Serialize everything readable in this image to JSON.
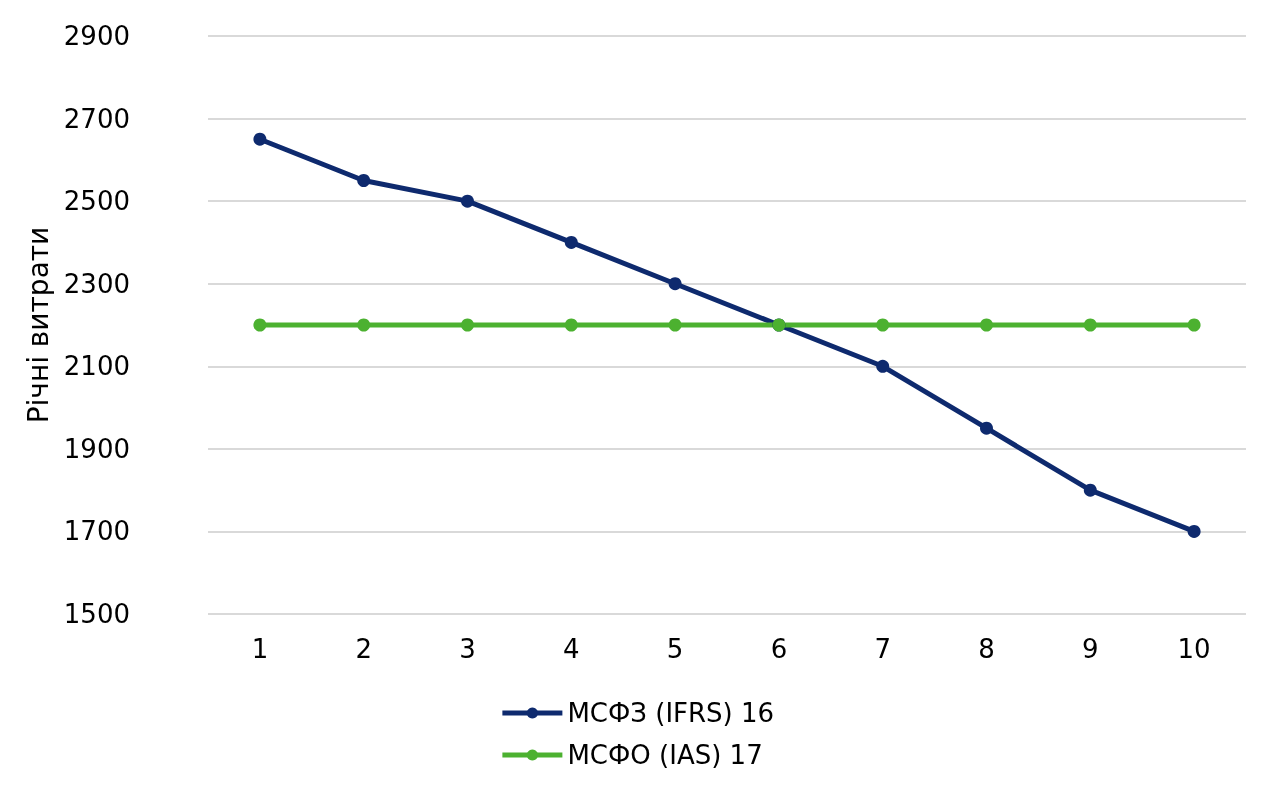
{
  "chart_data": {
    "type": "line",
    "ylabel": "Річні витрати",
    "categories": [
      "1",
      "2",
      "3",
      "4",
      "5",
      "6",
      "7",
      "8",
      "9",
      "10"
    ],
    "series": [
      {
        "name": "МСФЗ (IFRS) 16",
        "color": "#0e2a6e",
        "values": [
          2650,
          2550,
          2500,
          2400,
          2300,
          2200,
          2100,
          1950,
          1800,
          1700
        ]
      },
      {
        "name": "МСФО (IAS) 17",
        "color": "#4cb130",
        "values": [
          2200,
          2200,
          2200,
          2200,
          2200,
          2200,
          2200,
          2200,
          2200,
          2200
        ]
      }
    ],
    "ylim": [
      1500,
      2900
    ],
    "yticks": [
      1500,
      1700,
      1900,
      2100,
      2300,
      2500,
      2700,
      2900
    ],
    "grid": "y",
    "legend": "bottom",
    "marker": "circle",
    "line_style": "solid"
  }
}
